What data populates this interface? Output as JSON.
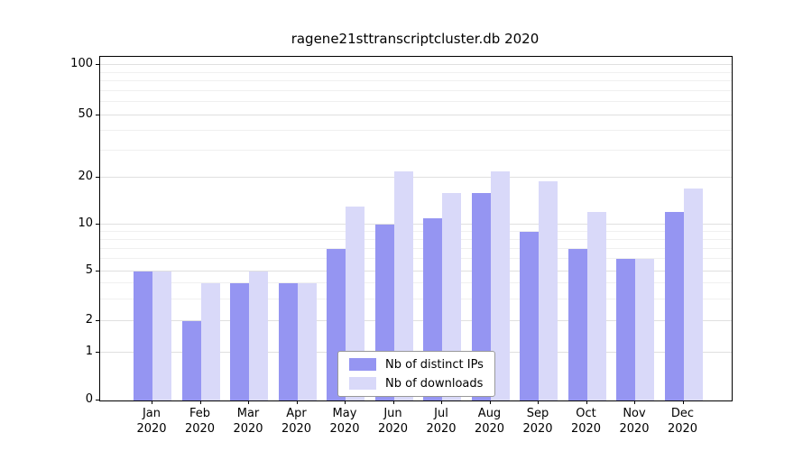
{
  "chart_data": {
    "type": "bar",
    "title": "ragene21sttranscriptcluster.db 2020",
    "year": "2020",
    "month_labels": [
      "Jan",
      "Feb",
      "Mar",
      "Apr",
      "May",
      "Jun",
      "Jul",
      "Aug",
      "Sep",
      "Oct",
      "Nov",
      "Dec"
    ],
    "categories": [
      "Jan 2020",
      "Feb 2020",
      "Mar 2020",
      "Apr 2020",
      "May 2020",
      "Jun 2020",
      "Jul 2020",
      "Aug 2020",
      "Sep 2020",
      "Oct 2020",
      "Nov 2020",
      "Dec 2020"
    ],
    "series": [
      {
        "name": "Nb of distinct IPs",
        "color": "#9595f2",
        "values": [
          5,
          2,
          4,
          4,
          7,
          10,
          11,
          16,
          9,
          7,
          6,
          12
        ]
      },
      {
        "name": "Nb of downloads",
        "color": "#d9d9f9",
        "values": [
          5,
          4,
          5,
          4,
          13,
          22,
          16,
          22,
          19,
          12,
          6,
          17
        ]
      }
    ],
    "yticks": [
      0,
      1,
      2,
      5,
      10,
      20,
      50,
      100
    ],
    "minor_yticks": [
      3,
      4,
      6,
      7,
      8,
      9,
      30,
      40,
      60,
      70,
      80,
      90
    ],
    "yscale": "log-like",
    "ylim": [
      0,
      100
    ],
    "xlabel": "",
    "ylabel": "",
    "grid": "horizontal",
    "legend_position": "bottom-center"
  }
}
